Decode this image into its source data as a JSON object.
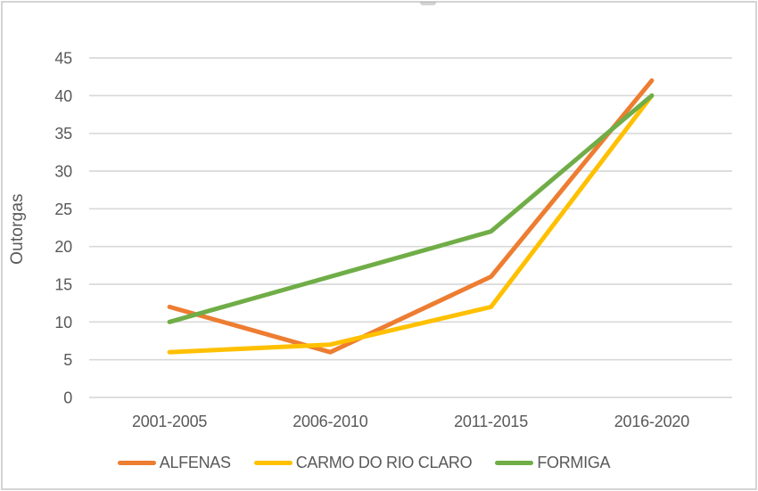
{
  "frame": {
    "background": "#ffffff",
    "border_color": "#d4d4d4"
  },
  "chart_data": {
    "type": "line",
    "categories": [
      "2001-2005",
      "2006-2010",
      "2011-2015",
      "2016-2020"
    ],
    "series": [
      {
        "name": "ALFENAS",
        "color": "#ED7D31",
        "values": [
          12,
          6,
          16,
          42
        ]
      },
      {
        "name": "CARMO DO RIO CLARO",
        "color": "#FFC000",
        "values": [
          6,
          7,
          12,
          40
        ]
      },
      {
        "name": "FORMIGA",
        "color": "#70AD47",
        "values": [
          10,
          16,
          22,
          40
        ]
      }
    ],
    "xlabel": "",
    "ylabel": "Outorgas",
    "ylim": [
      0,
      45
    ],
    "yticks": [
      0,
      5,
      10,
      15,
      20,
      25,
      30,
      35,
      40,
      45
    ],
    "grid": "horizontal",
    "gridline_color": "#d9d9d9",
    "text_color": "#595959",
    "legend_position": "bottom"
  }
}
